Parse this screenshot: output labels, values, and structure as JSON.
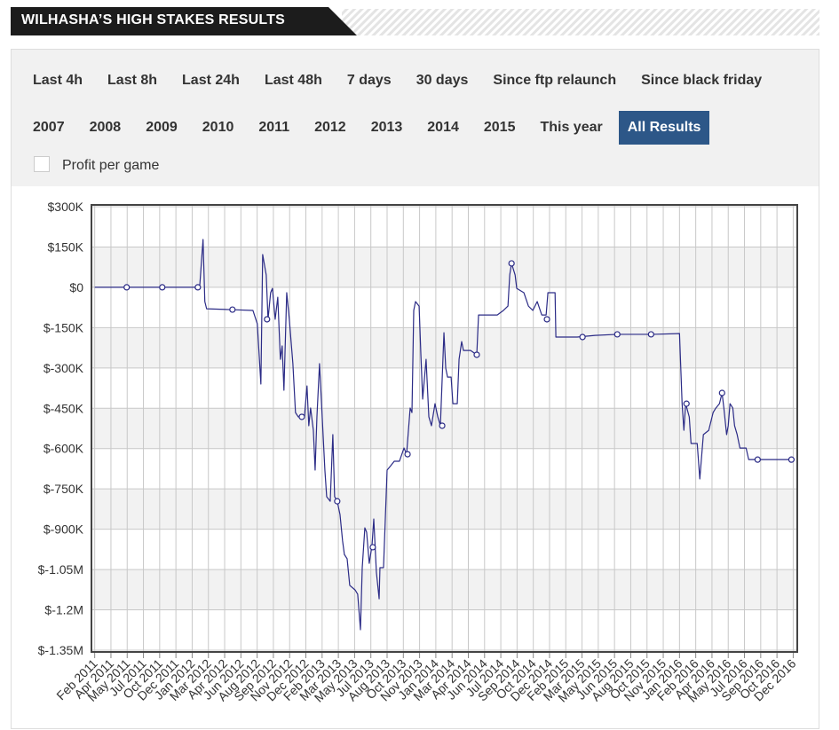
{
  "header": {
    "title": "WILHASHA’S HIGH STAKES RESULTS"
  },
  "filters": [
    [
      {
        "label": "Last 4h"
      },
      {
        "label": "Last 8h"
      },
      {
        "label": "Last 24h"
      },
      {
        "label": "Last 48h"
      },
      {
        "label": "7 days"
      },
      {
        "label": "30 days"
      },
      {
        "label": "Since ftp relaunch"
      },
      {
        "label": "Since black friday"
      }
    ],
    [
      {
        "label": "2007"
      },
      {
        "label": "2008"
      },
      {
        "label": "2009"
      },
      {
        "label": "2010"
      },
      {
        "label": "2011"
      },
      {
        "label": "2012"
      },
      {
        "label": "2013"
      },
      {
        "label": "2014"
      },
      {
        "label": "2015"
      },
      {
        "label": "This year"
      },
      {
        "label": "All Results",
        "selected": true
      }
    ]
  ],
  "options": {
    "label": "Profit per game",
    "checked": false
  },
  "chart_data": {
    "type": "line",
    "grid": true,
    "ylim": [
      -1350000,
      300000
    ],
    "yticks": [
      {
        "value": 300000,
        "label": "$300K"
      },
      {
        "value": 150000,
        "label": "$150K"
      },
      {
        "value": 0,
        "label": "$0"
      },
      {
        "value": -150000,
        "label": "$-150K"
      },
      {
        "value": -300000,
        "label": "$-300K"
      },
      {
        "value": -450000,
        "label": "$-450K"
      },
      {
        "value": -600000,
        "label": "$-600K"
      },
      {
        "value": -750000,
        "label": "$-750K"
      },
      {
        "value": -900000,
        "label": "$-900K"
      },
      {
        "value": -1050000,
        "label": "$-1.05M"
      },
      {
        "value": -1200000,
        "label": "$-1.2M"
      },
      {
        "value": -1350000,
        "label": "$-1.35M"
      }
    ],
    "xlim": [
      -0.2,
      43.25
    ],
    "xticks": [
      {
        "value": 0,
        "label": "Feb 2011"
      },
      {
        "value": 1,
        "label": "Apr 2011"
      },
      {
        "value": 2,
        "label": "May 2011"
      },
      {
        "value": 3,
        "label": "Jul 2011"
      },
      {
        "value": 4,
        "label": "Oct 2011"
      },
      {
        "value": 5,
        "label": "Dec 2011"
      },
      {
        "value": 6,
        "label": "Jan 2012"
      },
      {
        "value": 7,
        "label": "Mar 2012"
      },
      {
        "value": 8,
        "label": "Apr 2012"
      },
      {
        "value": 9,
        "label": "Jun 2012"
      },
      {
        "value": 10,
        "label": "Aug 2012"
      },
      {
        "value": 11,
        "label": "Sep 2012"
      },
      {
        "value": 12,
        "label": "Nov 2012"
      },
      {
        "value": 13,
        "label": "Dec 2012"
      },
      {
        "value": 14,
        "label": "Feb 2013"
      },
      {
        "value": 15,
        "label": "Mar 2013"
      },
      {
        "value": 16,
        "label": "May 2013"
      },
      {
        "value": 17,
        "label": "Jul 2013"
      },
      {
        "value": 18,
        "label": "Aug 2013"
      },
      {
        "value": 19,
        "label": "Oct 2013"
      },
      {
        "value": 20,
        "label": "Nov 2013"
      },
      {
        "value": 21,
        "label": "Jan 2014"
      },
      {
        "value": 22,
        "label": "Mar 2014"
      },
      {
        "value": 23,
        "label": "Apr 2014"
      },
      {
        "value": 24,
        "label": "Jun 2014"
      },
      {
        "value": 25,
        "label": "Jul 2014"
      },
      {
        "value": 26,
        "label": "Sep 2014"
      },
      {
        "value": 27,
        "label": "Oct 2014"
      },
      {
        "value": 28,
        "label": "Dec 2014"
      },
      {
        "value": 29,
        "label": "Feb 2015"
      },
      {
        "value": 30,
        "label": "Mar 2015"
      },
      {
        "value": 31,
        "label": "May 2015"
      },
      {
        "value": 32,
        "label": "Jun 2015"
      },
      {
        "value": 33,
        "label": "Aug 2015"
      },
      {
        "value": 34,
        "label": "Oct 2015"
      },
      {
        "value": 35,
        "label": "Nov 2015"
      },
      {
        "value": 36,
        "label": "Jan 2016"
      },
      {
        "value": 37,
        "label": "Feb 2016"
      },
      {
        "value": 38,
        "label": "Apr 2016"
      },
      {
        "value": 39,
        "label": "May 2016"
      },
      {
        "value": 40,
        "label": "Jul 2016"
      },
      {
        "value": 41,
        "label": "Sep 2016"
      },
      {
        "value": 42,
        "label": "Oct 2016"
      },
      {
        "value": 43,
        "label": "Dec 2016"
      }
    ],
    "series": [
      {
        "color": "#2b2b86",
        "x": [
          0,
          6.46,
          6.67,
          6.78,
          6.89,
          8.37,
          9.74,
          10.01,
          10.23,
          10.34,
          10.56,
          10.67,
          10.83,
          10.94,
          11.11,
          11.27,
          11.43,
          11.54,
          11.65,
          11.82,
          11.98,
          12.2,
          12.36,
          12.53,
          12.75,
          12.91,
          13.07,
          13.18,
          13.29,
          13.46,
          13.57,
          13.68,
          13.84,
          13.95,
          14.17,
          14.28,
          14.5,
          14.66,
          14.77,
          14.93,
          15.1,
          15.26,
          15.37,
          15.54,
          15.7,
          16.03,
          16.19,
          16.36,
          16.47,
          16.63,
          16.74,
          16.9,
          17.07,
          17.18,
          17.34,
          17.51,
          17.56,
          17.78,
          18.0,
          18.22,
          18.44,
          18.76,
          19.04,
          19.2,
          19.42,
          19.53,
          19.64,
          19.75,
          19.97,
          20.08,
          20.19,
          20.4,
          20.57,
          20.73,
          20.95,
          21.12,
          21.28,
          21.5,
          21.61,
          21.72,
          21.94,
          22.05,
          22.32,
          22.43,
          22.59,
          22.7,
          23.14,
          23.52,
          23.63,
          24.78,
          25.16,
          25.44,
          25.55,
          25.66,
          25.88,
          25.98,
          26.42,
          26.7,
          26.97,
          27.24,
          27.52,
          27.79,
          27.9,
          28.34,
          28.39,
          29.7,
          30.8,
          32.17,
          34.35,
          36.0,
          36.16,
          36.27,
          36.38,
          36.6,
          36.71,
          37.09,
          37.25,
          37.47,
          37.8,
          38.07,
          38.24,
          38.46,
          38.62,
          38.73,
          38.9,
          39.0,
          39.11,
          39.28,
          39.39,
          39.55,
          39.72,
          40.1,
          40.26,
          43.0
        ],
        "values": [
          0,
          0,
          178000,
          -53000,
          -80000,
          -83000,
          -86000,
          -136000,
          -360000,
          122000,
          46000,
          -119000,
          -20000,
          -4000,
          -119000,
          -37000,
          -268000,
          -218000,
          -383000,
          -20000,
          -119000,
          -284000,
          -466000,
          -482000,
          -482000,
          -482000,
          -367000,
          -515000,
          -449000,
          -532000,
          -680000,
          -482000,
          -284000,
          -416000,
          -680000,
          -779000,
          -796000,
          -548000,
          -779000,
          -796000,
          -845000,
          -944000,
          -994000,
          -1010000,
          -1109000,
          -1126000,
          -1142000,
          -1274000,
          -1043000,
          -895000,
          -911000,
          -1027000,
          -961000,
          -862000,
          -1060000,
          -1159000,
          -1043000,
          -1043000,
          -680000,
          -664000,
          -647000,
          -647000,
          -598000,
          -621000,
          -449000,
          -466000,
          -86000,
          -53000,
          -70000,
          -251000,
          -416000,
          -268000,
          -482000,
          -515000,
          -433000,
          -482000,
          -515000,
          -169000,
          -301000,
          -334000,
          -334000,
          -433000,
          -433000,
          -268000,
          -202000,
          -235000,
          -235000,
          -251000,
          -103000,
          -103000,
          -86000,
          -70000,
          46000,
          89000,
          46000,
          -4000,
          -20000,
          -70000,
          -86000,
          -53000,
          -103000,
          -103000,
          -20000,
          -20000,
          -185000,
          -185000,
          -179000,
          -175000,
          -175000,
          -172000,
          -433000,
          -532000,
          -433000,
          -482000,
          -581000,
          -581000,
          -713000,
          -548000,
          -532000,
          -466000,
          -449000,
          -433000,
          -393000,
          -449000,
          -548000,
          -515000,
          -433000,
          -449000,
          -515000,
          -548000,
          -598000,
          -598000,
          -641000,
          -641000
        ]
      }
    ],
    "markers": {
      "x": [
        1.97,
        4.16,
        6.35,
        8.48,
        10.61,
        12.75,
        14.93,
        17.12,
        19.26,
        21.39,
        23.52,
        25.66,
        27.84,
        30.03,
        32.17,
        34.25,
        36.43,
        38.62,
        40.81,
        42.89
      ],
      "values": [
        0,
        0,
        0,
        -83000,
        -119000,
        -482000,
        -796000,
        -967000,
        -621000,
        -515000,
        -251000,
        89000,
        -119000,
        -185000,
        -175000,
        -175000,
        -433000,
        -393000,
        -641000,
        -641000
      ]
    }
  }
}
